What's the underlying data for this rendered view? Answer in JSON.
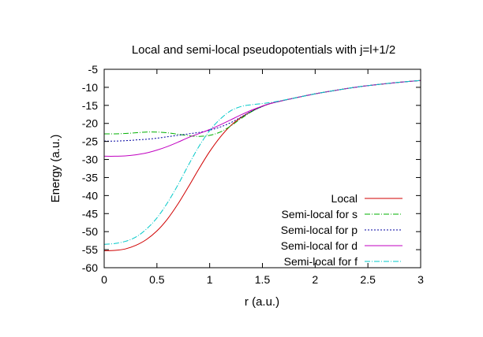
{
  "chart_data": {
    "type": "line",
    "title": "Local and semi-local pseudopotentials with j=l+1/2",
    "xlabel": "r (a.u.)",
    "ylabel": "Energy (a.u.)",
    "xlim": [
      0,
      3
    ],
    "ylim": [
      -60,
      -5
    ],
    "xticks": [
      "0",
      "0.5",
      "1",
      "1.5",
      "2",
      "2.5",
      "3"
    ],
    "yticks": [
      "-5",
      "-10",
      "-15",
      "-20",
      "-25",
      "-30",
      "-35",
      "-40",
      "-45",
      "-50",
      "-55",
      "-60"
    ],
    "grid": false,
    "legend": "bottom-right",
    "series": [
      {
        "name": "Local",
        "color": "#d00000",
        "dash": "",
        "x": [
          0,
          0.1,
          0.2,
          0.3,
          0.4,
          0.5,
          0.6,
          0.7,
          0.8,
          0.9,
          1.0,
          1.1,
          1.2,
          1.3,
          1.4,
          1.5,
          1.6,
          1.8,
          2.0,
          2.2,
          2.4,
          2.6,
          2.8,
          3.0
        ],
        "y": [
          -55.3,
          -55.2,
          -54.8,
          -53.8,
          -52.2,
          -49.8,
          -46.5,
          -42.3,
          -37.5,
          -32.5,
          -27.8,
          -23.8,
          -20.6,
          -18.3,
          -16.6,
          -15.2,
          -14.3,
          -13.0,
          -11.8,
          -10.8,
          -9.9,
          -9.2,
          -8.6,
          -8.1
        ]
      },
      {
        "name": "Semi-local for s",
        "color": "#00b000",
        "dash": "7 2 1 2",
        "x": [
          0,
          0.1,
          0.2,
          0.3,
          0.4,
          0.5,
          0.6,
          0.7,
          0.8,
          0.9,
          1.0,
          1.1,
          1.2,
          1.3,
          1.4,
          1.5,
          1.6,
          1.8,
          2.0,
          2.2,
          2.4,
          2.6,
          2.8,
          3.0
        ],
        "y": [
          -22.9,
          -22.9,
          -22.8,
          -22.6,
          -22.4,
          -22.4,
          -22.6,
          -23.0,
          -23.4,
          -23.6,
          -23.3,
          -22.4,
          -20.7,
          -18.6,
          -16.7,
          -15.3,
          -14.3,
          -13.0,
          -11.8,
          -10.8,
          -9.9,
          -9.2,
          -8.6,
          -8.1
        ]
      },
      {
        "name": "Semi-local for p",
        "color": "#0000a0",
        "dash": "2 2",
        "x": [
          0,
          0.1,
          0.2,
          0.3,
          0.4,
          0.5,
          0.6,
          0.7,
          0.8,
          0.9,
          1.0,
          1.1,
          1.2,
          1.3,
          1.4,
          1.5,
          1.6,
          1.8,
          2.0,
          2.2,
          2.4,
          2.6,
          2.8,
          3.0
        ],
        "y": [
          -24.9,
          -24.9,
          -24.8,
          -24.6,
          -24.4,
          -24.1,
          -23.7,
          -23.3,
          -22.9,
          -22.5,
          -21.9,
          -21.0,
          -19.8,
          -18.2,
          -16.6,
          -15.3,
          -14.3,
          -13.0,
          -11.8,
          -10.8,
          -9.9,
          -9.2,
          -8.6,
          -8.1
        ]
      },
      {
        "name": "Semi-local for d",
        "color": "#c000c0",
        "dash": "",
        "x": [
          0,
          0.1,
          0.2,
          0.3,
          0.4,
          0.5,
          0.6,
          0.7,
          0.8,
          0.9,
          1.0,
          1.1,
          1.2,
          1.3,
          1.4,
          1.5,
          1.6,
          1.8,
          2.0,
          2.2,
          2.4,
          2.6,
          2.8,
          3.0
        ],
        "y": [
          -29.1,
          -29.1,
          -29.0,
          -28.7,
          -28.2,
          -27.4,
          -26.4,
          -25.2,
          -23.9,
          -22.8,
          -21.7,
          -20.4,
          -19.0,
          -17.6,
          -16.3,
          -15.2,
          -14.3,
          -13.0,
          -11.8,
          -10.8,
          -9.9,
          -9.2,
          -8.6,
          -8.1
        ]
      },
      {
        "name": "Semi-local for f",
        "color": "#00c8c8",
        "dash": "7 2 1 2",
        "x": [
          0,
          0.1,
          0.2,
          0.3,
          0.4,
          0.5,
          0.6,
          0.7,
          0.8,
          0.9,
          1.0,
          1.1,
          1.2,
          1.3,
          1.4,
          1.5,
          1.6,
          1.8,
          2.0,
          2.2,
          2.4,
          2.6,
          2.8,
          3.0
        ],
        "y": [
          -53.5,
          -53.3,
          -52.7,
          -51.5,
          -49.3,
          -46.2,
          -42.0,
          -37.0,
          -31.5,
          -26.3,
          -22.0,
          -18.8,
          -16.5,
          -15.3,
          -14.8,
          -14.5,
          -14.1,
          -13.0,
          -11.8,
          -10.8,
          -9.9,
          -9.2,
          -8.6,
          -8.1
        ]
      }
    ]
  }
}
